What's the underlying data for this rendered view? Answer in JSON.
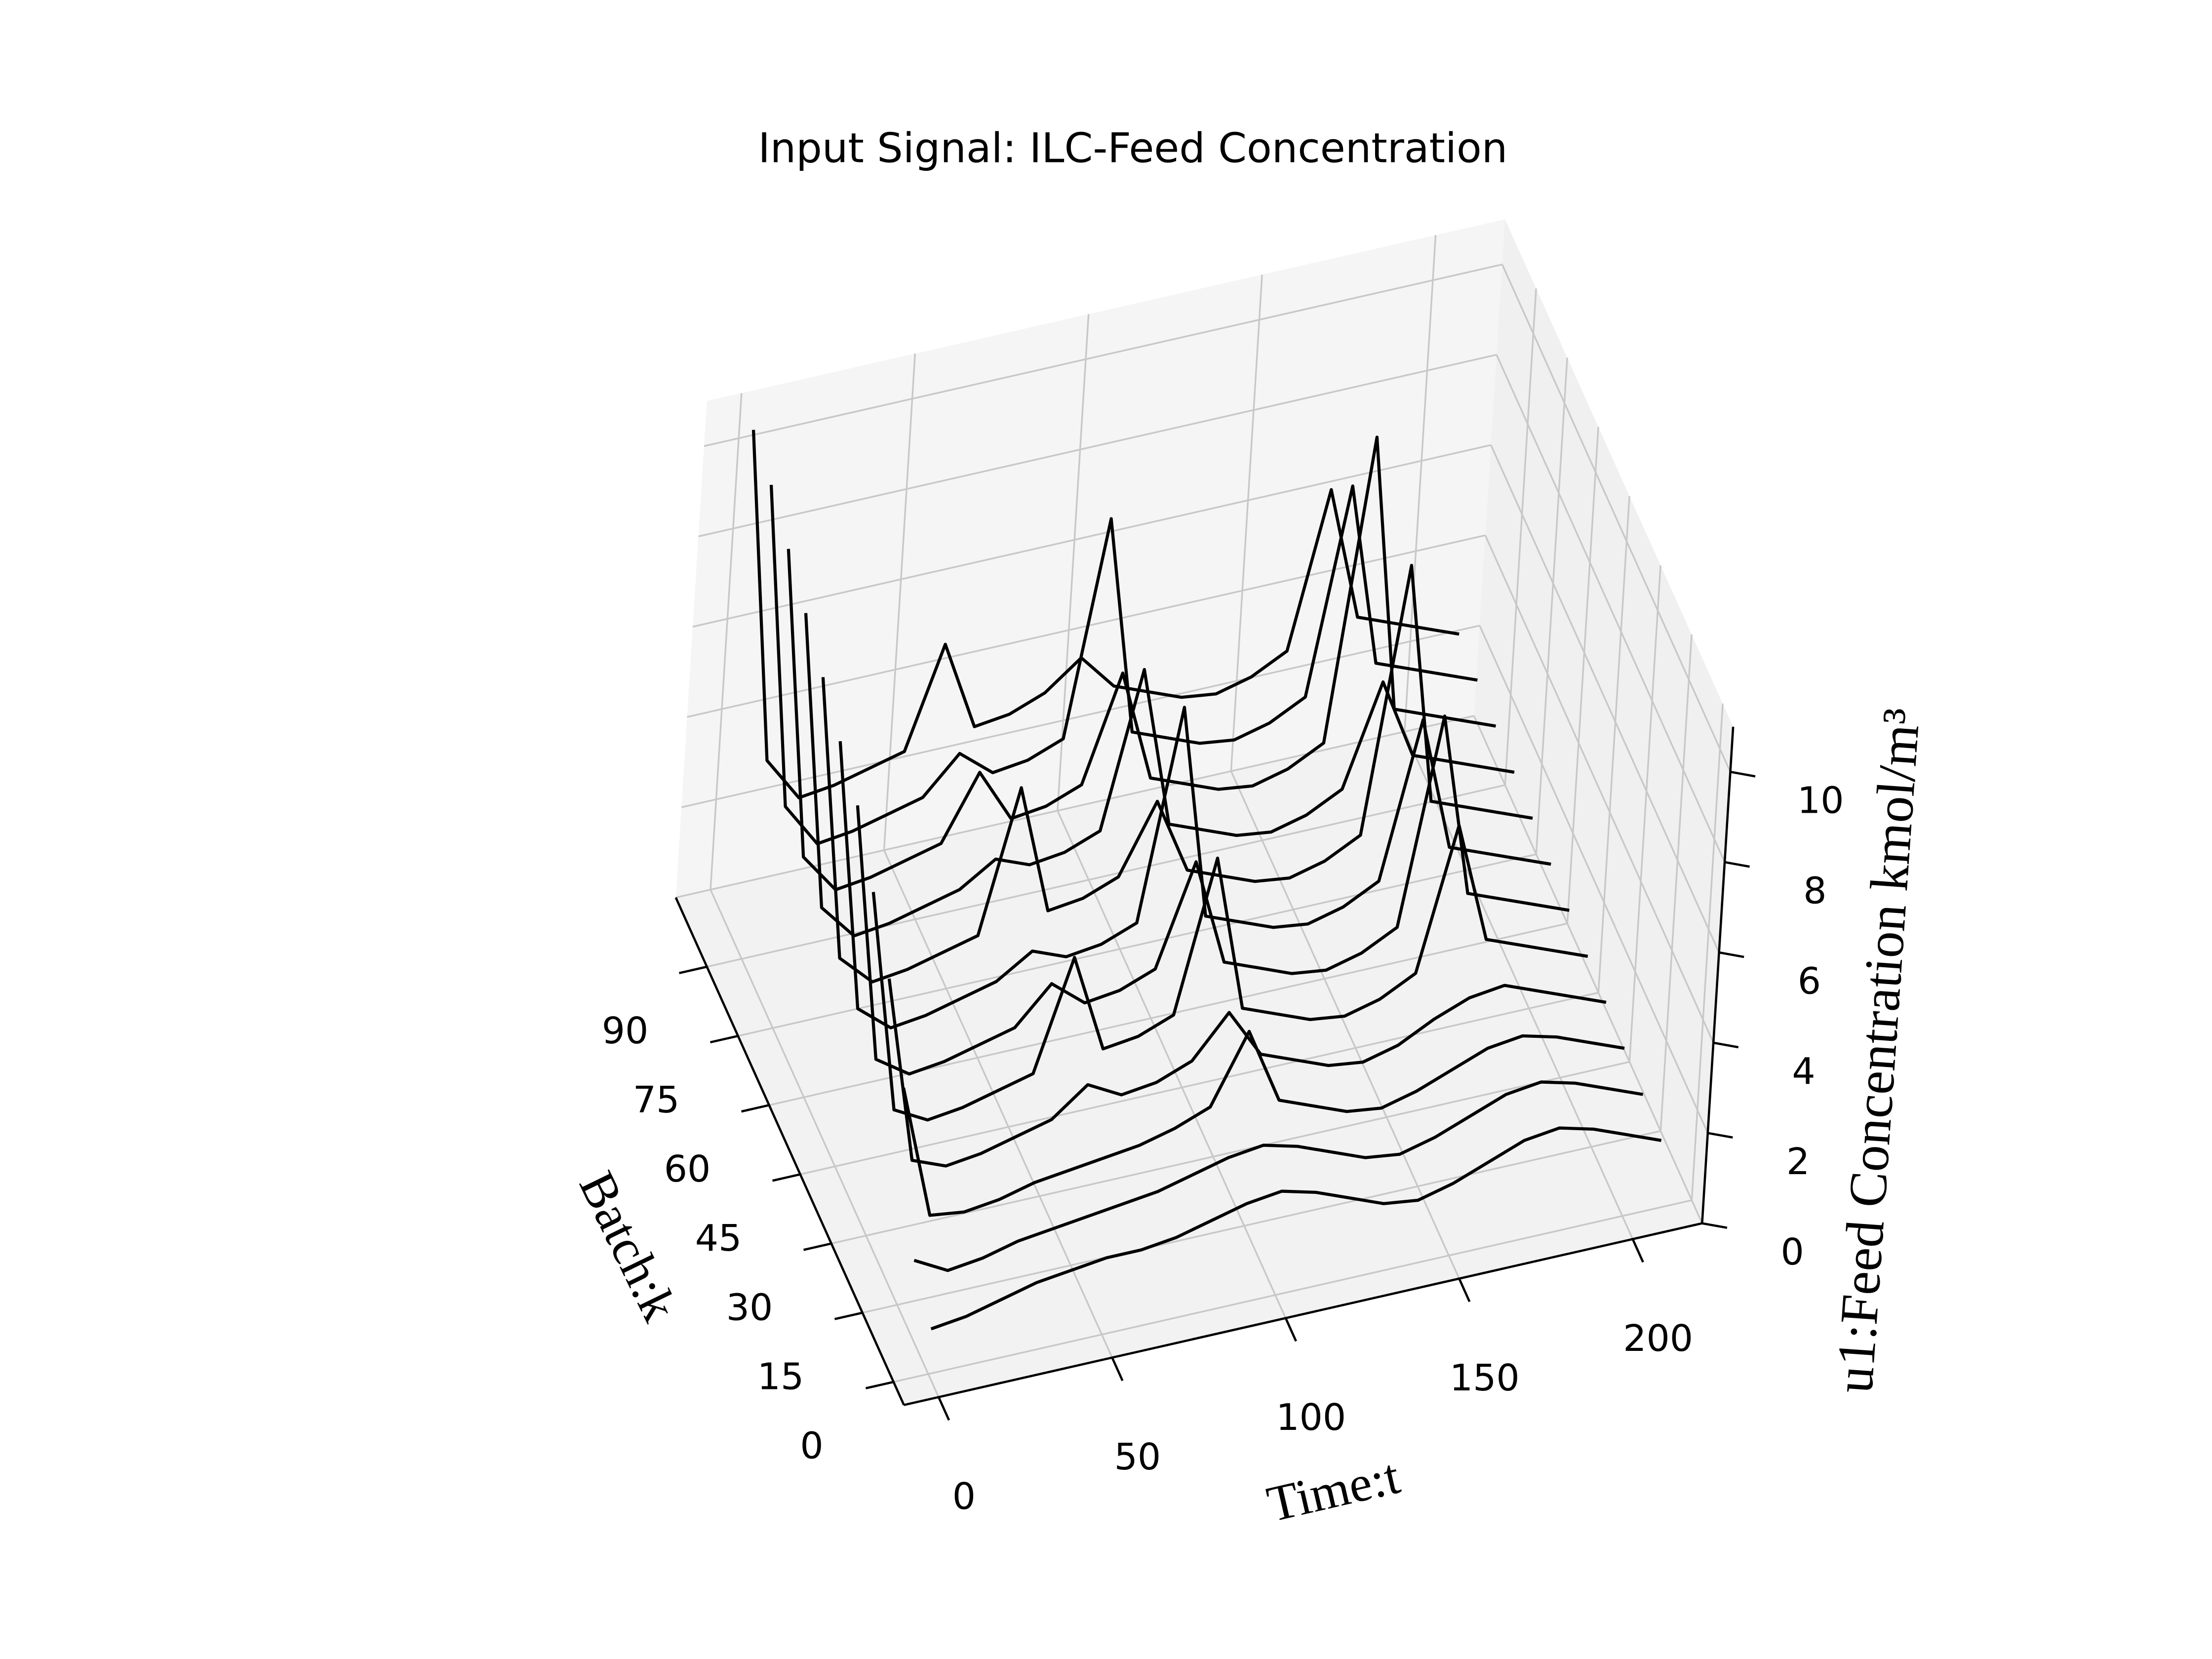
{
  "chart_data": {
    "type": "waterfall3d",
    "title": "Input Signal: ILC-Feed Concentration",
    "xlabel": "Time:t",
    "ylabel": "Batch:k",
    "zlabel": "u1:Feed Concentration kmol/m³",
    "color": "#000000",
    "grid": true,
    "xlim": [
      -10,
      220
    ],
    "ylim": [
      -5,
      105
    ],
    "zlim": [
      0,
      11
    ],
    "xticks": [
      0,
      50,
      100,
      150,
      200
    ],
    "yticks": [
      0,
      15,
      30,
      45,
      60,
      75,
      90
    ],
    "zticks": [
      0,
      2,
      4,
      6,
      8,
      10
    ],
    "x": [
      0,
      10,
      20,
      30,
      40,
      50,
      60,
      70,
      80,
      90,
      100,
      110,
      120,
      130,
      140,
      150,
      160,
      170,
      180,
      190,
      200,
      210
    ],
    "series": [
      {
        "batch": 0,
        "values": [
          1.0,
          1.1,
          1.3,
          1.5,
          1.6,
          1.7,
          1.7,
          1.8,
          2.0,
          2.2,
          2.3,
          2.1,
          1.8,
          1.5,
          1.4,
          1.6,
          1.9,
          2.2,
          2.3,
          2.1,
          1.8,
          1.5
        ]
      },
      {
        "batch": 9,
        "values": [
          1.6,
          1.2,
          1.3,
          1.5,
          1.6,
          1.7,
          1.8,
          1.9,
          2.1,
          2.3,
          2.4,
          2.2,
          1.9,
          1.6,
          1.5,
          1.7,
          2.0,
          2.3,
          2.4,
          2.2,
          1.9,
          1.6
        ]
      },
      {
        "batch": 18,
        "values": [
          4.5,
          1.5,
          1.4,
          1.5,
          1.7,
          1.8,
          1.9,
          2.0,
          2.2,
          2.5,
          4.0,
          2.3,
          2.0,
          1.7,
          1.6,
          1.8,
          2.1,
          2.4,
          2.5,
          2.3,
          2.0,
          1.7
        ]
      },
      {
        "batch": 27,
        "values": [
          6.0,
          1.8,
          1.5,
          1.6,
          1.8,
          2.0,
          2.6,
          2.2,
          2.3,
          2.6,
          3.5,
          2.4,
          2.1,
          1.8,
          1.7,
          1.9,
          2.3,
          2.6,
          2.7,
          2.4,
          2.1,
          1.8
        ]
      },
      {
        "batch": 36,
        "values": [
          7.0,
          2.0,
          1.6,
          1.7,
          1.9,
          2.1,
          4.5,
          2.3,
          2.4,
          2.7,
          6.0,
          2.5,
          2.2,
          1.9,
          1.8,
          2.0,
          2.4,
          5.5,
          2.8,
          2.5,
          2.2,
          1.9
        ]
      },
      {
        "batch": 45,
        "values": [
          8.0,
          2.2,
          1.7,
          1.8,
          2.0,
          2.2,
          3.0,
          2.4,
          2.5,
          2.8,
          5.0,
          2.6,
          2.3,
          2.0,
          1.9,
          2.1,
          2.5,
          7.0,
          2.9,
          2.6,
          2.3,
          2.0
        ]
      },
      {
        "batch": 54,
        "values": [
          8.5,
          2.4,
          1.8,
          1.9,
          2.1,
          2.3,
          2.8,
          2.5,
          2.6,
          2.9,
          7.5,
          2.7,
          2.4,
          2.1,
          2.0,
          2.2,
          2.6,
          6.0,
          3.0,
          2.7,
          2.4,
          2.1
        ]
      },
      {
        "batch": 63,
        "values": [
          9.0,
          2.6,
          1.9,
          2.0,
          2.2,
          2.4,
          5.5,
          2.6,
          2.7,
          3.0,
          4.5,
          2.8,
          2.5,
          2.2,
          2.1,
          2.3,
          2.7,
          8.5,
          3.1,
          2.8,
          2.5,
          2.2
        ]
      },
      {
        "batch": 72,
        "values": [
          9.5,
          2.8,
          2.0,
          2.1,
          2.3,
          2.5,
          3.0,
          2.7,
          2.8,
          3.1,
          6.5,
          2.9,
          2.6,
          2.3,
          2.2,
          2.4,
          2.8,
          5.0,
          3.2,
          2.9,
          2.6,
          2.3
        ]
      },
      {
        "batch": 81,
        "values": [
          10.0,
          3.0,
          2.1,
          2.2,
          2.4,
          2.6,
          4.0,
          2.8,
          2.9,
          3.2,
          5.5,
          3.0,
          2.7,
          2.4,
          2.3,
          2.5,
          2.9,
          9.5,
          3.3,
          3.0,
          2.7,
          2.4
        ]
      },
      {
        "batch": 90,
        "values": [
          10.5,
          3.2,
          2.2,
          2.3,
          2.5,
          2.7,
          3.5,
          2.9,
          3.0,
          3.3,
          8.0,
          3.1,
          2.8,
          2.5,
          2.4,
          2.6,
          3.0,
          7.5,
          3.4,
          3.1,
          2.8,
          2.5
        ]
      },
      {
        "batch": 99,
        "values": [
          10.8,
          3.3,
          2.3,
          2.4,
          2.6,
          2.8,
          5.0,
          3.0,
          3.1,
          3.4,
          4.0,
          3.2,
          2.9,
          2.6,
          2.5,
          2.7,
          3.1,
          6.5,
          3.5,
          3.2,
          2.9,
          2.6
        ]
      }
    ]
  }
}
